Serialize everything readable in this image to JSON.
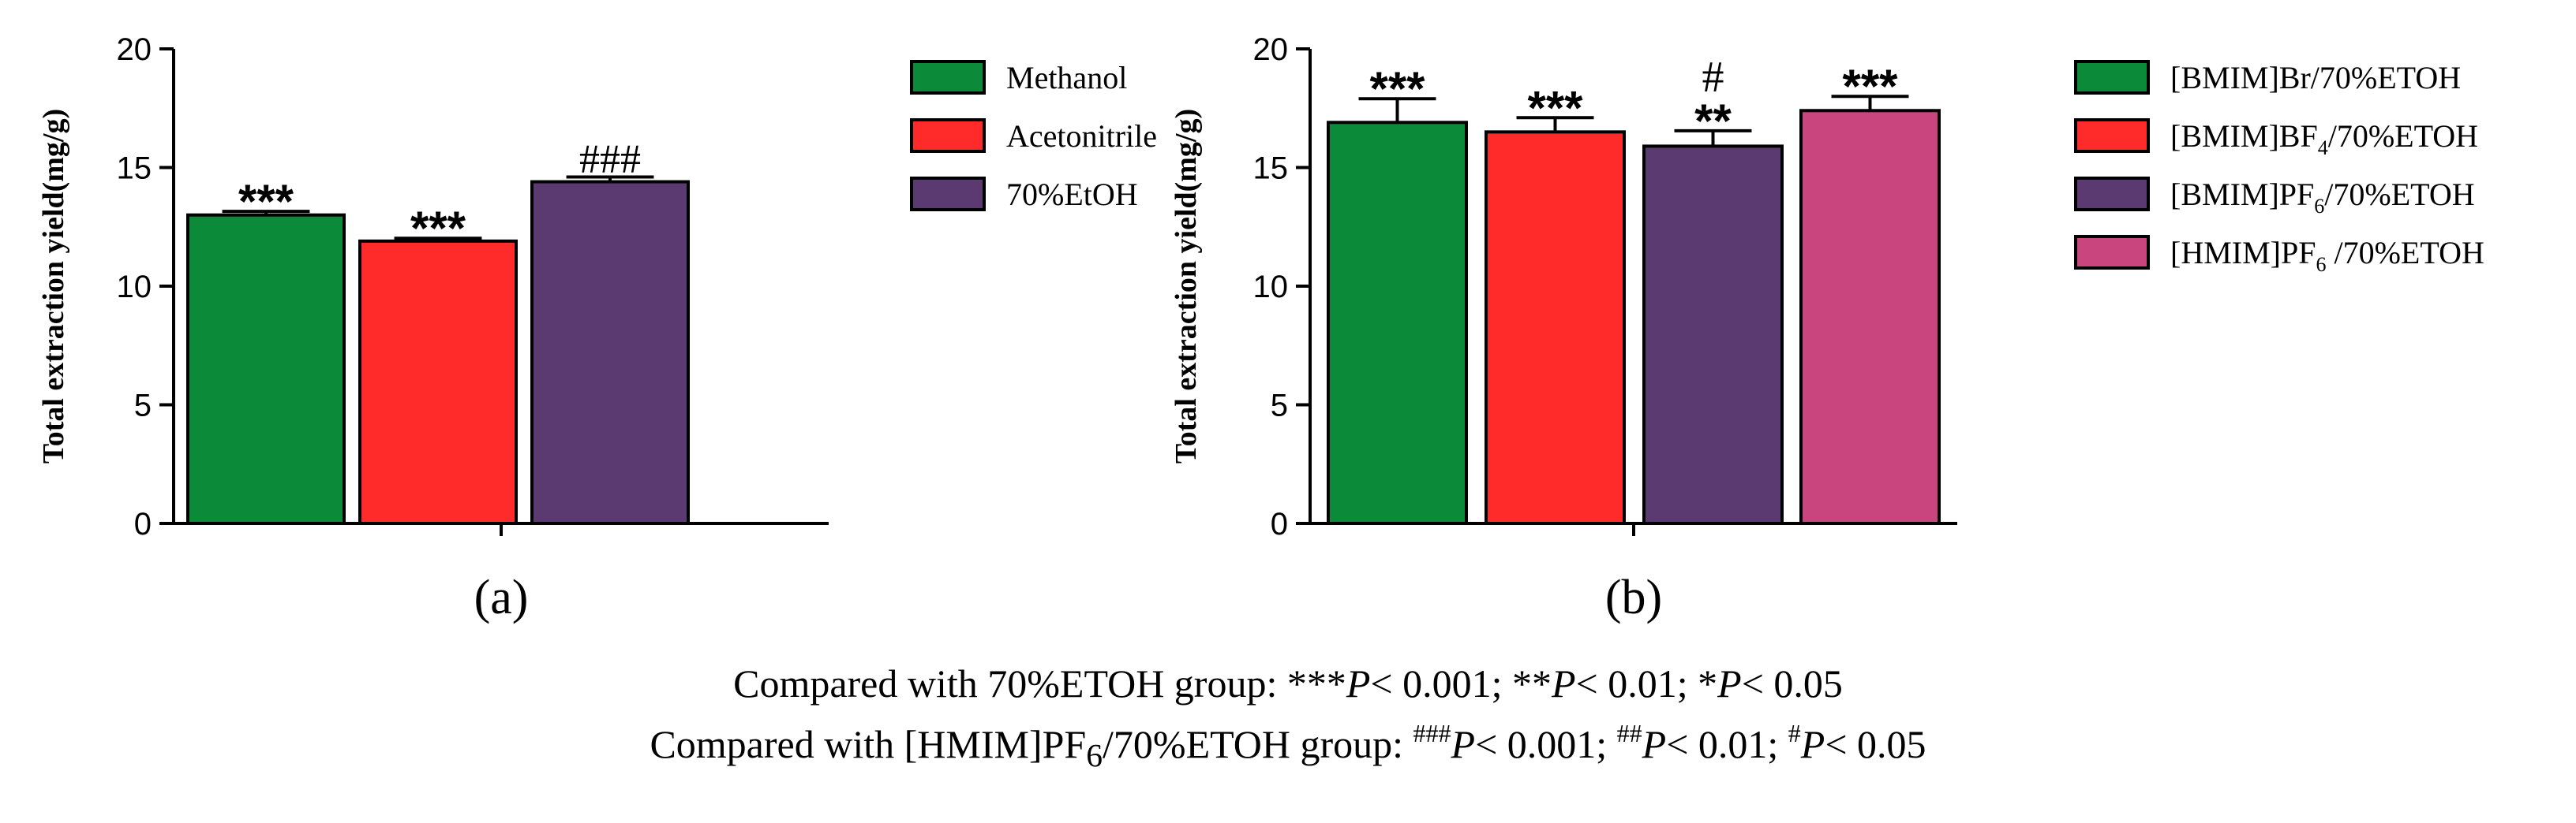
{
  "chart_data": [
    {
      "type": "bar",
      "panel_label": "(a)",
      "ylabel": "Total extraction yield(mg/g)",
      "xlabel": "",
      "ylim": [
        0,
        20
      ],
      "yticks": [
        0,
        5,
        10,
        15,
        20
      ],
      "ytick_labels": [
        "0",
        "5",
        "10",
        "15",
        "20"
      ],
      "categories": [
        "Methanol",
        "Acetonitrile",
        "70%EtOH"
      ],
      "values": [
        13.0,
        11.9,
        14.4
      ],
      "errors": [
        0.15,
        0.12,
        0.2
      ],
      "colors": [
        "#0b8a3a",
        "#ff2a2a",
        "#5b3a72"
      ],
      "annotations": [
        "***",
        "***",
        "###"
      ],
      "legend": {
        "position": "right",
        "entries": [
          {
            "label": "Methanol",
            "color": "#0b8a3a"
          },
          {
            "label": "Acetonitrile",
            "color": "#ff2a2a"
          },
          {
            "label": "70%EtOH",
            "color": "#5b3a72"
          }
        ]
      }
    },
    {
      "type": "bar",
      "panel_label": "(b)",
      "ylabel": "Total extraction yield(mg/g)",
      "xlabel": "",
      "ylim": [
        0,
        20
      ],
      "yticks": [
        0,
        5,
        10,
        15,
        20
      ],
      "ytick_labels": [
        "0",
        "5",
        "10",
        "15",
        "20"
      ],
      "categories": [
        "[BMIM]Br/70%ETOH",
        "[BMIM]BF4/70%ETOH",
        "[BMIM]PF6/70%ETOH",
        "[HMIM]PF6 /70%ETOH"
      ],
      "values": [
        16.9,
        16.5,
        15.9,
        17.4
      ],
      "errors": [
        1.0,
        0.6,
        0.65,
        0.6
      ],
      "colors": [
        "#0b8a3a",
        "#ff2a2a",
        "#5b3a72",
        "#c9457e"
      ],
      "annotations": [
        "***",
        "***",
        "**",
        "***"
      ],
      "annotations_upper": [
        "",
        "",
        "#",
        ""
      ],
      "legend": {
        "position": "right",
        "entries": [
          {
            "label": "[BMIM]Br/70%ETOH",
            "base": "[BMIM]Br/70%ETOH",
            "sub": "",
            "rest": "",
            "color": "#0b8a3a"
          },
          {
            "label": "[BMIM]BF4/70%ETOH",
            "base": "[BMIM]BF",
            "sub": "4",
            "rest": "/70%ETOH",
            "color": "#ff2a2a"
          },
          {
            "label": "[BMIM]PF6/70%ETOH",
            "base": "[BMIM]PF",
            "sub": "6",
            "rest": "/70%ETOH",
            "color": "#5b3a72"
          },
          {
            "label": "[HMIM]PF6 /70%ETOH",
            "base": "[HMIM]PF",
            "sub": "6",
            "rest": " /70%ETOH",
            "color": "#c9457e"
          }
        ]
      }
    }
  ],
  "footnotes": {
    "line1": {
      "lead": "Compared with 70%ETOH group: ",
      "s1": "***",
      "p1": "P",
      "t1": "< 0.001; ",
      "s2": "**",
      "p2": "P",
      "t2": "< 0.01; ",
      "s3": "*",
      "p3": "P",
      "t3": "< 0.05"
    },
    "line2": {
      "lead_a": "Compared with [HMIM]PF",
      "lead_sub": "6",
      "lead_b": "/70%ETOH group: ",
      "s1": "###",
      "p1": "P",
      "t1": "< 0.001; ",
      "s2": "##",
      "p2": "P",
      "t2": "< 0.01; ",
      "s3": "#",
      "p3": "P",
      "t3": "< 0.05"
    }
  }
}
